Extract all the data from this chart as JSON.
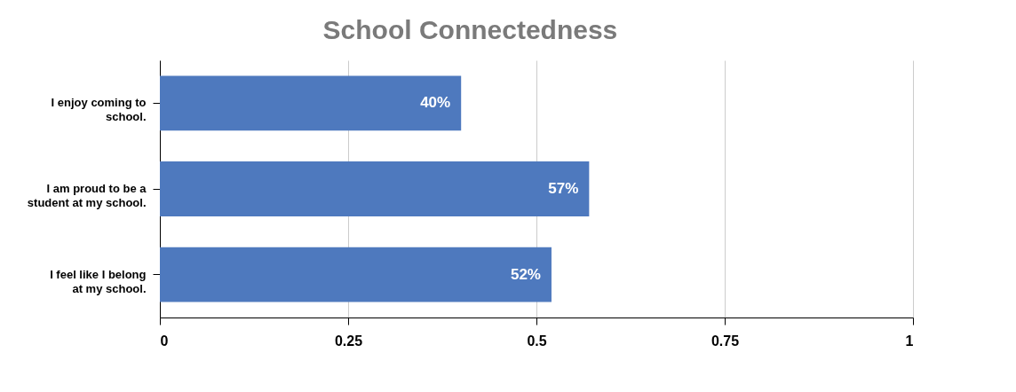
{
  "chart_data": {
    "type": "bar",
    "orientation": "horizontal",
    "title": "School Connectedness",
    "categories": [
      "I enjoy coming to school.",
      "I am proud to be a student at my school.",
      "I feel like I belong at my school."
    ],
    "values": [
      0.4,
      0.57,
      0.52
    ],
    "value_labels": [
      "40%",
      "57%",
      "52%"
    ],
    "color": "#4e79be",
    "xlim": [
      0,
      1
    ],
    "xticks": [
      0,
      0.25,
      0.5,
      0.75,
      1
    ],
    "grid": "x"
  }
}
